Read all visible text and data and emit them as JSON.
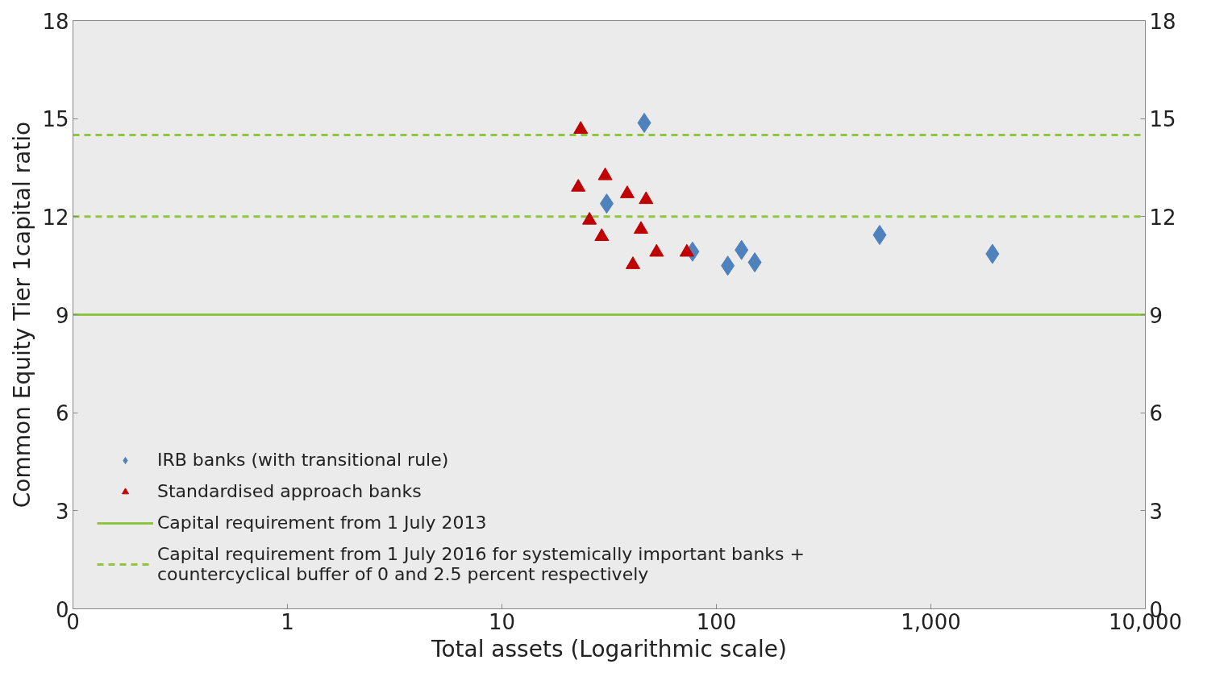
{
  "chart_data": {
    "type": "scatter",
    "xlabel": "Total assets (Logarithmic scale)",
    "ylabel": "Common Equity Tier 1capital ratio",
    "log": "x",
    "xlim": [
      0.1,
      10000
    ],
    "xticks": [
      {
        "value": 0.1,
        "label": "0"
      },
      1,
      10,
      {
        "value": 100,
        "label": "100"
      },
      {
        "value": 1000,
        "label": "1,000"
      },
      {
        "value": 10000,
        "label": "10,000"
      }
    ],
    "ylim": [
      0,
      18
    ],
    "yticks": [
      0,
      3,
      6,
      9,
      12,
      15,
      18
    ],
    "y2lim": [
      0,
      18
    ],
    "y2ticks": [
      0,
      3,
      6,
      9,
      12,
      15,
      18
    ],
    "grid": false,
    "legend": "bottom left",
    "series": [
      {
        "name": "IRB banks (with transitional rule)",
        "color": "#4f81bd",
        "marker": "diamond",
        "x": [
          46.1,
          30.8,
          77.4,
          113,
          131,
          151,
          577,
          1937
        ],
        "values": [
          14.87,
          12.4,
          10.93,
          10.5,
          10.98,
          10.6,
          11.44,
          10.86
        ]
      },
      {
        "name": "Standardised approach banks",
        "color": "#c00000",
        "marker": "triangle",
        "x": [
          23.3,
          22.7,
          30.3,
          38.4,
          47,
          25.6,
          29.2,
          44.5,
          40.8,
          52.6,
          72.8
        ],
        "values": [
          14.67,
          12.9,
          13.25,
          12.7,
          12.52,
          11.89,
          11.39,
          11.61,
          10.53,
          10.91,
          10.91
        ]
      }
    ],
    "ref_lines": [
      {
        "axis": "y",
        "value": 9,
        "label": "Capital requirement from 1 July 2013",
        "color": "#8dc63f",
        "line_style": "solid"
      },
      {
        "axis": "y",
        "value": 12,
        "label": "Capital requirement from 1 July 2016 for systemically important banks +\ncountercyclical buffer of 0 and 2.5 percent respectively",
        "color": "#8dc63f",
        "line_style": "dashed"
      },
      {
        "axis": "y",
        "value": 14.5,
        "color": "#8dc63f",
        "line_style": "dashed"
      }
    ]
  }
}
